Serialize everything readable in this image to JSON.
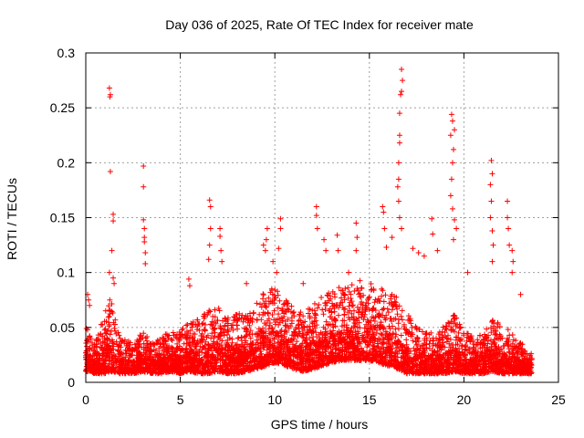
{
  "chart_data": {
    "type": "scatter",
    "title": "Day 036 of 2025, Rate Of TEC Index for receiver mate",
    "xlabel": "GPS time / hours",
    "ylabel": "ROTI / TECUs",
    "xlim": [
      0,
      25
    ],
    "ylim": [
      0,
      0.3
    ],
    "x_ticks": [
      0,
      5,
      10,
      15,
      20,
      25
    ],
    "x_tick_labels": [
      "0",
      "5",
      "10",
      "15",
      "20",
      "25"
    ],
    "y_ticks": [
      0,
      0.05,
      0.1,
      0.15,
      0.2,
      0.25,
      0.3
    ],
    "y_tick_labels": [
      "0",
      "0.05",
      "0.1",
      "0.15",
      "0.2",
      "0.25",
      "0.3"
    ],
    "grid": true,
    "marker": "+",
    "marker_color": "#ff0000",
    "series": [
      {
        "name": "ROTI",
        "points": [
          [
            1.25,
            0.268
          ],
          [
            1.3,
            0.262
          ],
          [
            1.28,
            0.26
          ],
          [
            1.3,
            0.192
          ],
          [
            1.45,
            0.153
          ],
          [
            1.45,
            0.147
          ],
          [
            1.38,
            0.12
          ],
          [
            1.25,
            0.1
          ],
          [
            1.45,
            0.095
          ],
          [
            1.5,
            0.09
          ],
          [
            3.05,
            0.197
          ],
          [
            3.05,
            0.178
          ],
          [
            3.05,
            0.148
          ],
          [
            3.1,
            0.14
          ],
          [
            3.1,
            0.132
          ],
          [
            3.1,
            0.128
          ],
          [
            3.15,
            0.118
          ],
          [
            3.15,
            0.108
          ],
          [
            6.55,
            0.166
          ],
          [
            6.6,
            0.16
          ],
          [
            6.6,
            0.14
          ],
          [
            6.55,
            0.125
          ],
          [
            6.5,
            0.112
          ],
          [
            7.1,
            0.14
          ],
          [
            7.1,
            0.133
          ],
          [
            7.15,
            0.12
          ],
          [
            7.2,
            0.11
          ],
          [
            9.6,
            0.14
          ],
          [
            9.55,
            0.13
          ],
          [
            9.5,
            0.12
          ],
          [
            9.4,
            0.125
          ],
          [
            10.3,
            0.149
          ],
          [
            10.3,
            0.14
          ],
          [
            10.2,
            0.122
          ],
          [
            9.9,
            0.11
          ],
          [
            10.1,
            0.1
          ],
          [
            12.2,
            0.16
          ],
          [
            12.2,
            0.152
          ],
          [
            12.25,
            0.14
          ],
          [
            12.6,
            0.13
          ],
          [
            12.7,
            0.12
          ],
          [
            13.3,
            0.134
          ],
          [
            13.35,
            0.12
          ],
          [
            14.3,
            0.145
          ],
          [
            14.35,
            0.132
          ],
          [
            14.3,
            0.12
          ],
          [
            15.7,
            0.16
          ],
          [
            15.75,
            0.155
          ],
          [
            15.8,
            0.14
          ],
          [
            15.9,
            0.123
          ],
          [
            16.2,
            0.132
          ],
          [
            16.7,
            0.285
          ],
          [
            16.75,
            0.275
          ],
          [
            16.7,
            0.265
          ],
          [
            16.65,
            0.262
          ],
          [
            16.6,
            0.245
          ],
          [
            16.6,
            0.225
          ],
          [
            16.6,
            0.218
          ],
          [
            16.55,
            0.2
          ],
          [
            16.55,
            0.185
          ],
          [
            16.5,
            0.178
          ],
          [
            16.55,
            0.165
          ],
          [
            16.6,
            0.15
          ],
          [
            16.7,
            0.14
          ],
          [
            17.3,
            0.122
          ],
          [
            17.6,
            0.118
          ],
          [
            17.9,
            0.115
          ],
          [
            18.3,
            0.149
          ],
          [
            18.35,
            0.135
          ],
          [
            18.6,
            0.12
          ],
          [
            19.35,
            0.244
          ],
          [
            19.4,
            0.238
          ],
          [
            19.5,
            0.23
          ],
          [
            19.3,
            0.225
          ],
          [
            19.45,
            0.212
          ],
          [
            19.4,
            0.2
          ],
          [
            19.35,
            0.185
          ],
          [
            19.3,
            0.17
          ],
          [
            19.4,
            0.158
          ],
          [
            19.5,
            0.148
          ],
          [
            19.6,
            0.14
          ],
          [
            19.45,
            0.13
          ],
          [
            21.45,
            0.202
          ],
          [
            21.5,
            0.19
          ],
          [
            21.4,
            0.18
          ],
          [
            21.45,
            0.165
          ],
          [
            21.4,
            0.15
          ],
          [
            21.5,
            0.138
          ],
          [
            21.55,
            0.125
          ],
          [
            21.5,
            0.11
          ],
          [
            22.3,
            0.165
          ],
          [
            22.3,
            0.15
          ],
          [
            22.35,
            0.14
          ],
          [
            22.4,
            0.125
          ],
          [
            22.55,
            0.12
          ],
          [
            22.6,
            0.11
          ],
          [
            22.55,
            0.1
          ],
          [
            0.1,
            0.08
          ],
          [
            0.15,
            0.075
          ],
          [
            0.2,
            0.07
          ],
          [
            5.45,
            0.094
          ],
          [
            5.5,
            0.088
          ],
          [
            8.5,
            0.09
          ],
          [
            11.5,
            0.09
          ],
          [
            13.9,
            0.1
          ],
          [
            20.2,
            0.1
          ],
          [
            23.0,
            0.08
          ]
        ]
      }
    ],
    "dense_band": {
      "x_range": [
        0,
        23.6
      ],
      "description": "background scatter density bands (base and upper envelope of ROTI, in TECU)",
      "envelope": [
        [
          0,
          0.01,
          0.05
        ],
        [
          0.5,
          0.008,
          0.035
        ],
        [
          1.0,
          0.008,
          0.06
        ],
        [
          1.3,
          0.01,
          0.075
        ],
        [
          1.8,
          0.008,
          0.04
        ],
        [
          2.5,
          0.008,
          0.035
        ],
        [
          3.0,
          0.01,
          0.045
        ],
        [
          3.5,
          0.008,
          0.035
        ],
        [
          4.0,
          0.008,
          0.04
        ],
        [
          4.5,
          0.01,
          0.045
        ],
        [
          5.0,
          0.008,
          0.045
        ],
        [
          5.5,
          0.01,
          0.055
        ],
        [
          6.0,
          0.008,
          0.055
        ],
        [
          6.5,
          0.008,
          0.065
        ],
        [
          7.0,
          0.01,
          0.065
        ],
        [
          7.5,
          0.008,
          0.06
        ],
        [
          8.0,
          0.008,
          0.06
        ],
        [
          8.5,
          0.01,
          0.06
        ],
        [
          9.0,
          0.012,
          0.07
        ],
        [
          9.5,
          0.015,
          0.08
        ],
        [
          10.0,
          0.018,
          0.085
        ],
        [
          10.5,
          0.015,
          0.075
        ],
        [
          11.0,
          0.012,
          0.065
        ],
        [
          11.5,
          0.01,
          0.06
        ],
        [
          12.0,
          0.012,
          0.07
        ],
        [
          12.5,
          0.015,
          0.075
        ],
        [
          13.0,
          0.018,
          0.08
        ],
        [
          13.5,
          0.02,
          0.085
        ],
        [
          14.0,
          0.02,
          0.085
        ],
        [
          14.5,
          0.02,
          0.09
        ],
        [
          15.0,
          0.02,
          0.09
        ],
        [
          15.5,
          0.018,
          0.085
        ],
        [
          16.0,
          0.015,
          0.08
        ],
        [
          16.5,
          0.012,
          0.075
        ],
        [
          17.0,
          0.008,
          0.06
        ],
        [
          17.5,
          0.008,
          0.05
        ],
        [
          18.0,
          0.008,
          0.045
        ],
        [
          18.5,
          0.008,
          0.045
        ],
        [
          19.0,
          0.008,
          0.05
        ],
        [
          19.5,
          0.01,
          0.06
        ],
        [
          20.0,
          0.008,
          0.045
        ],
        [
          20.5,
          0.008,
          0.04
        ],
        [
          21.0,
          0.008,
          0.045
        ],
        [
          21.5,
          0.01,
          0.055
        ],
        [
          22.0,
          0.008,
          0.05
        ],
        [
          22.5,
          0.008,
          0.045
        ],
        [
          23.0,
          0.008,
          0.035
        ],
        [
          23.6,
          0.008,
          0.025
        ]
      ]
    }
  }
}
